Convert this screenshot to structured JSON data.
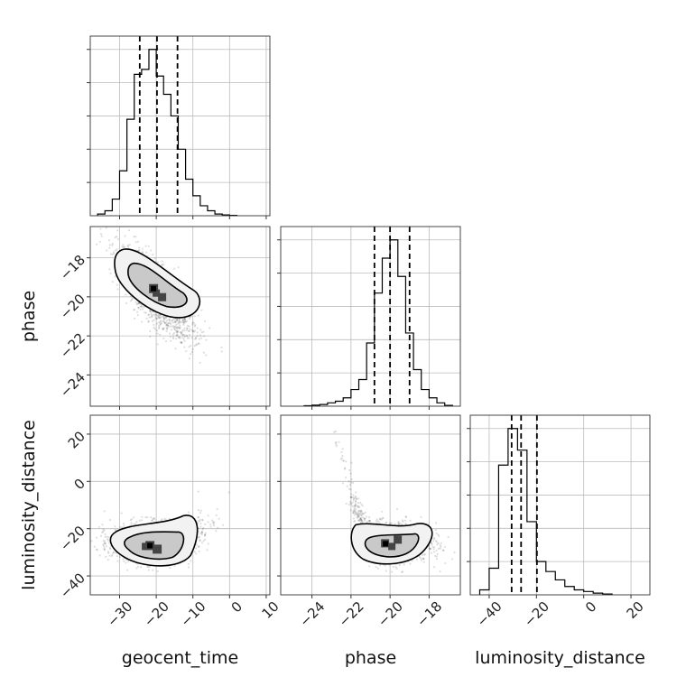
{
  "chart_data": {
    "type": "corner",
    "parameters": [
      "geocent_time",
      "phase",
      "luminosity_distance"
    ],
    "ranges": {
      "geocent_time": [
        -38,
        11
      ],
      "phase": [
        -25.6,
        -16.4
      ],
      "luminosity_distance": [
        -48,
        28
      ]
    },
    "ticks": {
      "geocent_time": [
        -30,
        -20,
        -10,
        0,
        10
      ],
      "phase": [
        -24,
        -22,
        -20,
        -18
      ],
      "luminosity_distance": [
        -40,
        -20,
        0,
        20
      ]
    },
    "tick_labels": {
      "geocent_time": [
        "−30",
        "−20",
        "−10",
        "0",
        "10"
      ],
      "phase": [
        "−24",
        "−22",
        "−20",
        "−18"
      ],
      "luminosity_distance": [
        "−40",
        "−20",
        "0",
        "20"
      ]
    },
    "quantiles": {
      "geocent_time": [
        -24.5,
        -19.8,
        -14.2
      ],
      "phase": [
        -20.8,
        -20.0,
        -19.0
      ],
      "luminosity_distance": [
        -30.5,
        -26.5,
        -19.8
      ]
    },
    "histograms": {
      "geocent_time": {
        "edges": [
          -36,
          -34,
          -32,
          -30,
          -28,
          -26,
          -24,
          -22,
          -20,
          -18,
          -16,
          -14,
          -12,
          -10,
          -8,
          -6,
          -4,
          -2,
          0,
          2
        ],
        "counts": [
          1,
          3,
          10,
          27,
          58,
          85,
          88,
          100,
          84,
          73,
          60,
          40,
          22,
          12,
          6,
          3,
          1,
          0.5,
          0.2
        ]
      },
      "phase": {
        "edges": [
          -24.4,
          -24.0,
          -23.6,
          -23.2,
          -22.8,
          -22.4,
          -22.0,
          -21.6,
          -21.2,
          -20.8,
          -20.4,
          -20.0,
          -19.6,
          -19.2,
          -18.8,
          -18.4,
          -18.0,
          -17.6,
          -17.2,
          -16.8
        ],
        "counts": [
          0.3,
          0.6,
          1,
          2,
          3,
          5,
          10,
          16,
          38,
          68,
          89,
          100,
          78,
          44,
          22,
          10,
          5,
          2,
          0.5
        ]
      },
      "luminosity_distance": {
        "edges": [
          -44,
          -40,
          -36,
          -32,
          -28,
          -24,
          -20,
          -16,
          -12,
          -8,
          -4,
          0,
          4,
          8,
          12
        ],
        "counts": [
          3,
          16,
          78,
          100,
          87,
          44,
          20,
          14,
          9,
          5,
          3,
          2,
          1,
          0.5
        ]
      }
    },
    "samples_2d": [
      {
        "x": "geocent_time",
        "y": "phase",
        "center": [
          -20,
          -19.9
        ],
        "sd": [
          5.0,
          1.1
        ],
        "rho": -0.75
      },
      {
        "x": "geocent_time",
        "y": "luminosity_distance",
        "center": [
          -20,
          -26
        ],
        "sd": [
          6.0,
          6.0
        ],
        "shape": "curved"
      },
      {
        "x": "phase",
        "y": "luminosity_distance",
        "center": [
          -20,
          -26
        ],
        "sd": [
          1.0,
          5.5
        ],
        "shape": "curved"
      }
    ],
    "grid": true,
    "contour_levels": [
      0.39,
      0.86
    ]
  }
}
